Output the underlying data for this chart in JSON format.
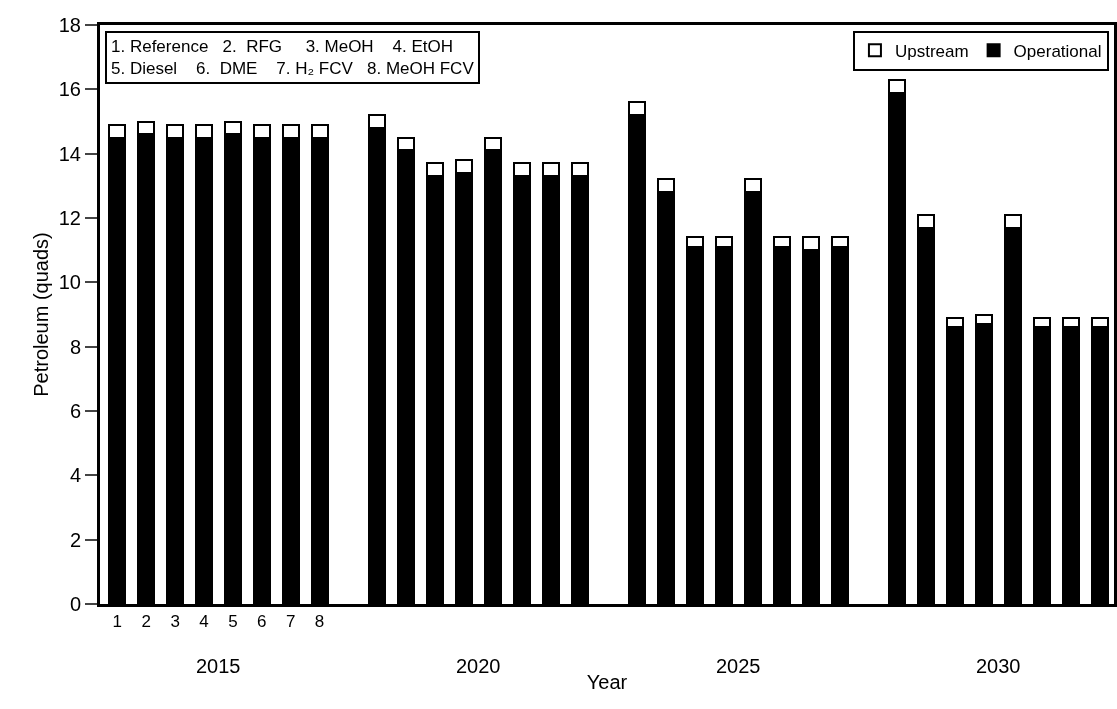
{
  "chart_data": {
    "type": "bar",
    "stacked": true,
    "xlabel": "Year",
    "ylabel": "Petroleum (quads)",
    "categories": [
      "1",
      "2",
      "3",
      "4",
      "5",
      "6",
      "7",
      "8",
      null,
      null,
      null,
      null,
      null,
      null,
      null,
      null,
      null,
      null,
      null,
      null,
      null,
      null,
      null,
      null,
      null,
      null,
      null,
      null,
      null,
      null,
      null,
      null,
      null,
      null,
      null
    ],
    "series": [
      {
        "name": "Operational",
        "color": "#000000",
        "values": [
          14.5,
          14.6,
          14.5,
          14.5,
          14.6,
          14.5,
          14.5,
          14.5,
          null,
          14.8,
          14.1,
          13.3,
          13.4,
          14.1,
          13.3,
          13.3,
          13.3,
          null,
          15.2,
          12.8,
          11.1,
          11.1,
          12.8,
          11.1,
          11.0,
          11.1,
          null,
          15.9,
          11.7,
          8.6,
          8.7,
          11.7,
          8.6,
          8.6,
          8.6
        ]
      },
      {
        "name": "Upstream",
        "color": "#ffffff",
        "values": [
          0.4,
          0.4,
          0.4,
          0.4,
          0.4,
          0.4,
          0.4,
          0.4,
          null,
          0.4,
          0.4,
          0.4,
          0.4,
          0.4,
          0.4,
          0.4,
          0.4,
          null,
          0.4,
          0.4,
          0.3,
          0.3,
          0.4,
          0.3,
          0.4,
          0.3,
          null,
          0.4,
          0.4,
          0.3,
          0.3,
          0.4,
          0.3,
          0.3,
          0.3
        ]
      }
    ],
    "ylim": [
      0,
      18
    ],
    "yticks": [
      0,
      2,
      4,
      6,
      8,
      10,
      12,
      14,
      16,
      18
    ],
    "grid": false,
    "legend": "top right",
    "annotations": [
      "1. Reference   2.  RFG     3. MeOH    4. EtOH\n5. Diesel    6.  DME    7. H₂ FCV   8. MeOH FCV",
      "2015",
      "2020",
      "2025",
      "2030"
    ]
  }
}
